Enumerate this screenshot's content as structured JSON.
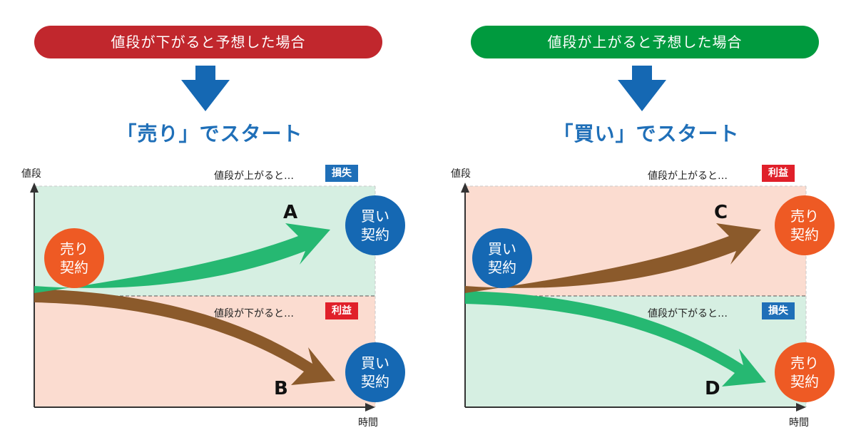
{
  "left": {
    "header": "値段が下がると予想した場合",
    "header_color": "#c1272d",
    "start_label": "「売り」でスタート",
    "y_axis": "値段",
    "x_axis": "時間",
    "upper": {
      "condition": "値段が上がると…",
      "badge": "損失",
      "badge_color": "#1f6fb8",
      "zone_color": "#d6efe2"
    },
    "lower": {
      "condition": "値段が下がると…",
      "badge": "利益",
      "badge_color": "#e0202a",
      "zone_color": "#fbdcd0"
    },
    "start_circle": {
      "line1": "売り",
      "line2": "契約",
      "color": "#ee5a24"
    },
    "end_circle_top": {
      "line1": "買い",
      "line2": "契約",
      "color": "#1568b3"
    },
    "end_circle_bottom": {
      "line1": "買い",
      "line2": "契約",
      "color": "#1568b3"
    },
    "arrow_up_label": "A",
    "arrow_down_label": "B",
    "arrow_up_color": "#26b872",
    "arrow_down_color": "#8b5a2b"
  },
  "right": {
    "header": "値段が上がると予想した場合",
    "header_color": "#009a3e",
    "start_label": "「買い」でスタート",
    "y_axis": "値段",
    "x_axis": "時間",
    "upper": {
      "condition": "値段が上がると…",
      "badge": "利益",
      "badge_color": "#e0202a",
      "zone_color": "#fbdcd0"
    },
    "lower": {
      "condition": "値段が下がると…",
      "badge": "損失",
      "badge_color": "#1f6fb8",
      "zone_color": "#d6efe2"
    },
    "start_circle": {
      "line1": "買い",
      "line2": "契約",
      "color": "#1568b3"
    },
    "end_circle_top": {
      "line1": "売り",
      "line2": "契約",
      "color": "#ee5a24"
    },
    "end_circle_bottom": {
      "line1": "売り",
      "line2": "契約",
      "color": "#ee5a24"
    },
    "arrow_up_label": "C",
    "arrow_down_label": "D",
    "arrow_up_color": "#8b5a2b",
    "arrow_down_color": "#26b872"
  }
}
